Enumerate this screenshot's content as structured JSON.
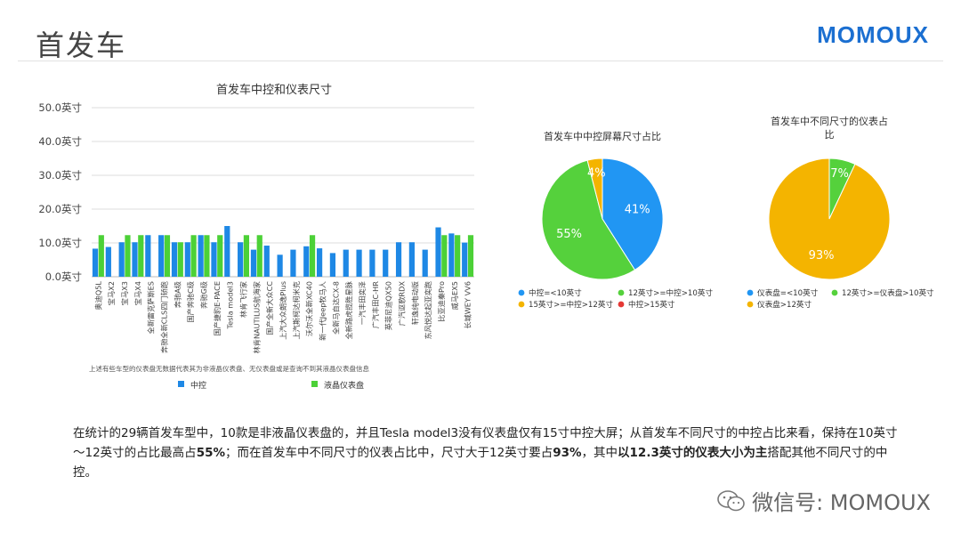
{
  "page": {
    "title": "首发车",
    "brand": "MOMOUX",
    "brand_color": "#1b6fd1",
    "paragraph": [
      {
        "text": "在统计的29辆首发车型中，10款是非液晶仪表盘的，并且Tesla model3没有仪表盘仅有15寸中控大屏；从首发车不同尺寸的中控占比来看，保持在10英寸～12英寸的占比最高占",
        "bold": false
      },
      {
        "text": "55%",
        "bold": true
      },
      {
        "text": "；而在首发车中不同尺寸的仪表占比中，尺寸大于12英寸要占",
        "bold": false
      },
      {
        "text": "93%",
        "bold": true
      },
      {
        "text": "，其中",
        "bold": false
      },
      {
        "text": "以12.3英寸的仪表大小为主",
        "bold": true
      },
      {
        "text": "搭配其他不同尺寸的中控。",
        "bold": false
      }
    ],
    "watermark": "微信号: MOMOUX",
    "watermark_icon": "wechat-icon"
  },
  "chart_data": [
    {
      "type": "bar",
      "title": "首发车中控和仪表尺寸",
      "ylim": [
        0,
        50
      ],
      "yticks": [
        "0.0英寸",
        "10.0英寸",
        "20.0英寸",
        "30.0英寸",
        "40.0英寸",
        "50.0英寸"
      ],
      "grid": true,
      "categories": [
        "奥迪Q5L",
        "宝马X2",
        "宝马X3",
        "宝马X4",
        "全新雷克萨斯ES",
        "奔驰全新CLS四门轿跑",
        "奔驰A级",
        "国产奔驰C级",
        "奔驰G级",
        "国产捷豹E-PACE",
        "Tesla model3",
        "林肯飞行家",
        "林肯NAUTILUS航海家",
        "国产全新大众CC",
        "上汽大众朗逸Plus",
        "上汽斯柯达柯米克",
        "沃尔沃全新XC40",
        "新一代Jeep牧马人",
        "全新马自达CX-8",
        "全新路虎揽胜星脉",
        "一汽丰田奕泽",
        "广汽丰田C-HR",
        "英菲尼迪QX50",
        "广汽讴歌RDX",
        "轩逸纯电动版",
        "东风悦达起亚奕跑",
        "比亚迪秦Pro",
        "威马EX5",
        "长城WEY VV6"
      ],
      "series": [
        {
          "name": "中控",
          "color": "#1e88e5",
          "values": [
            8.3,
            8.8,
            10.2,
            10.2,
            12.3,
            12.3,
            10.2,
            10.2,
            12.3,
            10.2,
            15,
            10.2,
            8,
            9.2,
            6.5,
            8,
            9,
            8.4,
            7,
            8,
            8,
            8,
            8,
            10.2,
            10.2,
            8,
            14.6,
            12.8,
            10.1
          ]
        },
        {
          "name": "液晶仪表盘",
          "color": "#4cd137",
          "values": [
            12.3,
            0,
            12.3,
            12.3,
            0,
            12.3,
            10.2,
            12.3,
            12.3,
            12.3,
            0,
            12.3,
            12.3,
            0,
            0,
            0,
            12.3,
            0,
            0,
            0,
            0,
            0,
            0,
            0,
            0,
            0,
            12.3,
            12.3,
            12.3
          ]
        }
      ],
      "legend": "bottom",
      "annotation": "上述有些车型的仪表盘无数据代表其为非液晶仪表盘、无仪表盘或是查询不到其液晶仪表盘信息"
    },
    {
      "type": "pie",
      "title": "首发车中中控屏幕尺寸占比",
      "slices": [
        {
          "label": "中控=<10英寸",
          "value": 41,
          "color": "#2196f3",
          "display": "41%"
        },
        {
          "label": "12英寸>=中控>10英寸",
          "value": 55,
          "color": "#55d13c",
          "display": "55%"
        },
        {
          "label": "15英寸>=中控>12英寸",
          "value": 4,
          "color": "#f4b400",
          "display": "4%"
        },
        {
          "label": "中控>15英寸",
          "value": 0,
          "color": "#e53935",
          "display": ""
        }
      ],
      "legend": "bottom"
    },
    {
      "type": "pie",
      "title": "首发车中不同尺寸的仪表占比",
      "slices": [
        {
          "label": "仪表盘=<10英寸",
          "value": 0,
          "color": "#2196f3",
          "display": ""
        },
        {
          "label": "12英寸>=仪表盘>10英寸",
          "value": 7,
          "color": "#55d13c",
          "display": "7%"
        },
        {
          "label": "仪表盘>12英寸",
          "value": 93,
          "color": "#f4b400",
          "display": "93%"
        }
      ],
      "legend": "bottom"
    }
  ]
}
